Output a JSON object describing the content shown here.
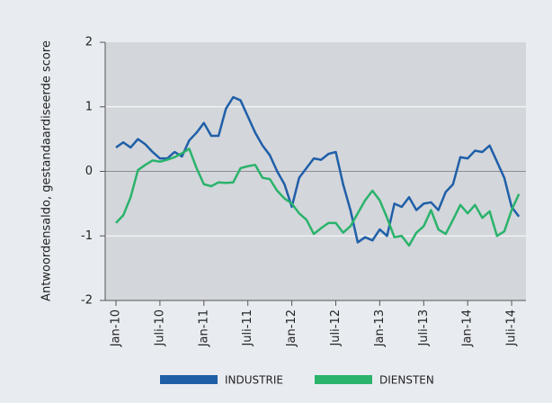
{
  "chart_data": {
    "type": "line",
    "y_label": "Antwoordensaldo, gestandaardiseerde score",
    "categories": [
      "Jan-10",
      null,
      null,
      null,
      null,
      null,
      "Juli-10",
      null,
      null,
      null,
      null,
      null,
      "Jan-11",
      null,
      null,
      null,
      null,
      null,
      "Juli-11",
      null,
      null,
      null,
      null,
      null,
      "Jan-12",
      null,
      null,
      null,
      null,
      null,
      "Juli-12",
      null,
      null,
      null,
      null,
      null,
      "Jan-13",
      null,
      null,
      null,
      null,
      null,
      "Juli-13",
      null,
      null,
      null,
      null,
      null,
      "Jan-14",
      null,
      null,
      null,
      null,
      null,
      "Juli-14",
      null
    ],
    "series": [
      {
        "name": "INDUSTRIE",
        "color": "#1f5fa8",
        "values": [
          0.37,
          0.45,
          0.37,
          0.5,
          0.42,
          0.3,
          0.2,
          0.2,
          0.3,
          0.23,
          0.48,
          0.6,
          0.75,
          0.55,
          0.55,
          0.97,
          1.15,
          1.1,
          0.85,
          0.6,
          0.4,
          0.25,
          0.0,
          -0.2,
          -0.55,
          -0.1,
          0.05,
          0.2,
          0.18,
          0.27,
          0.3,
          -0.2,
          -0.6,
          -1.1,
          -1.02,
          -1.07,
          -0.9,
          -1.0,
          -0.5,
          -0.55,
          -0.4,
          -0.6,
          -0.5,
          -0.48,
          -0.6,
          -0.32,
          -0.2,
          0.22,
          0.2,
          0.32,
          0.3,
          0.4,
          0.15,
          -0.1,
          -0.55,
          -0.7
        ]
      },
      {
        "name": "DIENSTEN",
        "color": "#2ab36b",
        "values": [
          -0.8,
          -0.68,
          -0.4,
          0.02,
          0.1,
          0.17,
          0.15,
          0.18,
          0.22,
          0.28,
          0.35,
          0.05,
          -0.2,
          -0.23,
          -0.17,
          -0.18,
          -0.17,
          0.05,
          0.08,
          0.1,
          -0.1,
          -0.12,
          -0.3,
          -0.42,
          -0.5,
          -0.65,
          -0.75,
          -0.97,
          -0.88,
          -0.8,
          -0.8,
          -0.95,
          -0.85,
          -0.65,
          -0.45,
          -0.3,
          -0.45,
          -0.72,
          -1.02,
          -1.0,
          -1.15,
          -0.95,
          -0.85,
          -0.6,
          -0.9,
          -0.97,
          -0.75,
          -0.52,
          -0.65,
          -0.52,
          -0.72,
          -0.62,
          -1.0,
          -0.93,
          -0.6,
          -0.35
        ]
      }
    ],
    "ylim": [
      -2,
      2
    ],
    "yticks": [
      -2,
      -1,
      0,
      1,
      2
    ],
    "grid": true
  }
}
